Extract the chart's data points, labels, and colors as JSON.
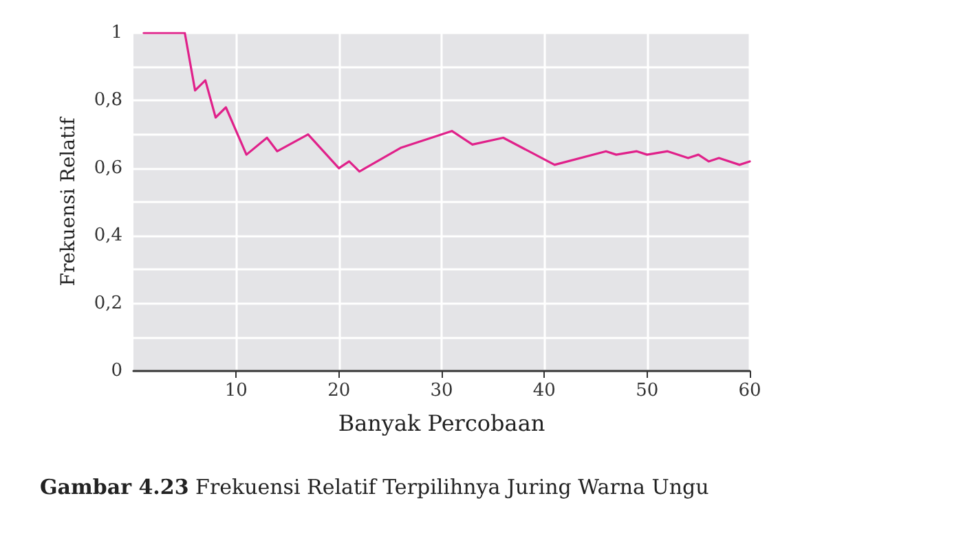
{
  "chart_data": {
    "type": "line",
    "title": "Gambar 4.23 Frekuensi Relatif Terpilihnya Juring Warna Ungu",
    "xlabel": "Banyak Percobaan",
    "ylabel": "Frekuensi Relatif",
    "x": [
      1,
      5,
      6,
      7,
      8,
      9,
      11,
      13,
      14,
      17,
      20,
      21,
      22,
      26,
      31,
      33,
      36,
      41,
      46,
      47,
      49,
      50,
      52,
      54,
      55,
      56,
      57,
      59,
      60
    ],
    "series": [
      {
        "color": "#e0218a",
        "values": [
          1,
          1,
          0.83,
          0.86,
          0.75,
          0.78,
          0.64,
          0.69,
          0.65,
          0.7,
          0.6,
          0.62,
          0.59,
          0.66,
          0.71,
          0.67,
          0.69,
          0.61,
          0.65,
          0.64,
          0.65,
          0.64,
          0.65,
          0.63,
          0.64,
          0.62,
          0.63,
          0.61,
          0.62
        ]
      }
    ],
    "xlim": [
      0,
      60
    ],
    "xticks": [
      10,
      20,
      30,
      40,
      50,
      60
    ],
    "ylim": [
      0,
      1
    ],
    "yticks": [
      0,
      {
        "value": 0.1,
        "label": null
      },
      {
        "value": 0.2,
        "label": "0,2"
      },
      {
        "value": 0.3,
        "label": null
      },
      {
        "value": 0.4,
        "label": "0,4"
      },
      {
        "value": 0.5,
        "label": null
      },
      {
        "value": 0.6,
        "label": "0,6"
      },
      {
        "value": 0.7,
        "label": null
      },
      {
        "value": 0.8,
        "label": "0,8"
      },
      {
        "value": 0.9,
        "label": null
      },
      1
    ],
    "grid": true,
    "marker": "none",
    "line_style": "solid"
  }
}
